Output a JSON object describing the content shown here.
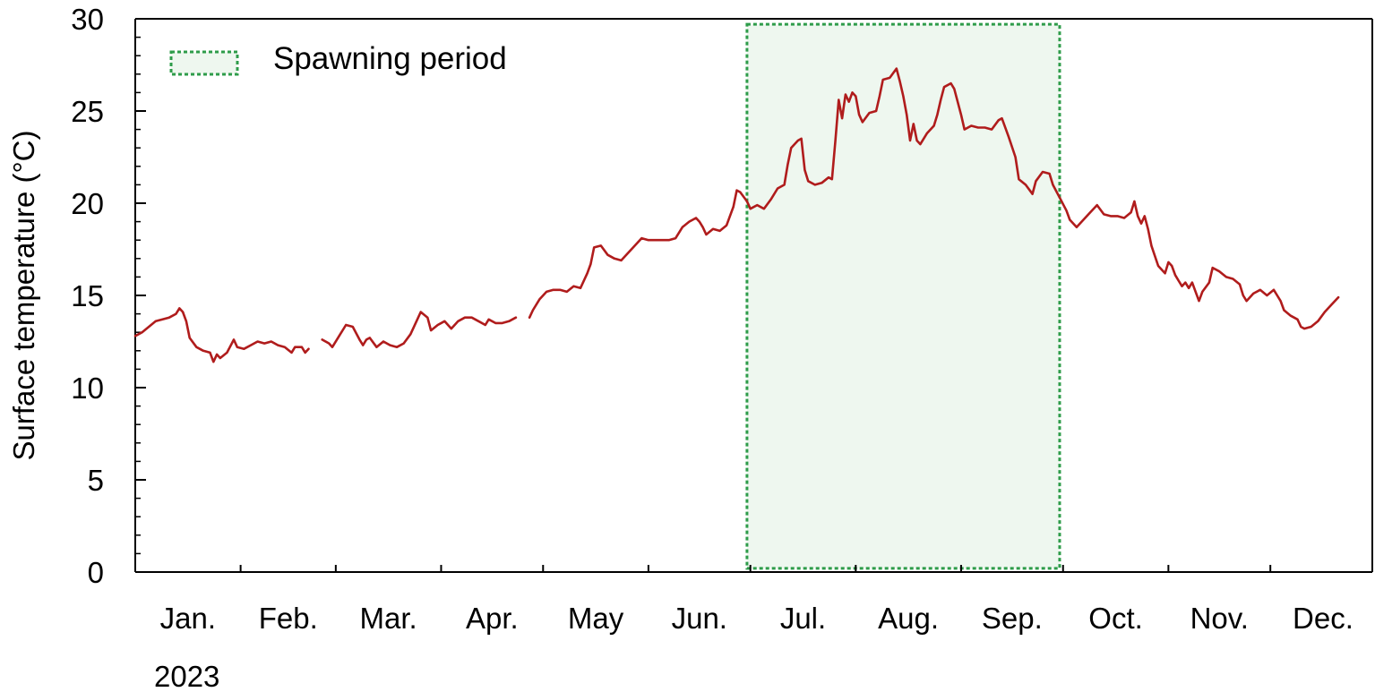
{
  "chart_data": {
    "type": "line",
    "title": "",
    "xlabel": "2023",
    "ylabel": "Surface temperature (°C)",
    "ylim": [
      0,
      30
    ],
    "yticks": [
      0,
      5,
      10,
      15,
      20,
      25,
      30
    ],
    "ytick_labels": [
      "0",
      "5",
      "10",
      "15",
      "20",
      "25",
      "30"
    ],
    "year_label": "2023",
    "x_domain_days": [
      1,
      365
    ],
    "months": [
      "Jan.",
      "Feb.",
      "Mar.",
      "Apr.",
      "May",
      "Jun.",
      "Jul.",
      "Aug.",
      "Sep.",
      "Oct.",
      "Nov.",
      "Dec."
    ],
    "legend": {
      "label": "Spawning period",
      "position": "top-left"
    },
    "spawning_period": {
      "start": "Jul. 1",
      "end": "Sep. 30",
      "start_day": 181,
      "end_day": 273
    },
    "line_color": "#b01c1c",
    "band_color": "#2e9c4a",
    "grid": false,
    "series": [
      {
        "segments": [
          [
            [
              1,
              12.8
            ],
            [
              3,
              13.0
            ],
            [
              5,
              13.3
            ],
            [
              7,
              13.6
            ],
            [
              9,
              13.7
            ],
            [
              11,
              13.8
            ],
            [
              13,
              14.0
            ],
            [
              14,
              14.3
            ],
            [
              15,
              14.1
            ],
            [
              16,
              13.6
            ],
            [
              17,
              12.7
            ],
            [
              19,
              12.2
            ],
            [
              21,
              12.0
            ],
            [
              23,
              11.9
            ],
            [
              24,
              11.4
            ],
            [
              25,
              11.8
            ],
            [
              26,
              11.6
            ],
            [
              28,
              11.9
            ],
            [
              30,
              12.6
            ],
            [
              31,
              12.2
            ],
            [
              33,
              12.1
            ],
            [
              35,
              12.3
            ],
            [
              37,
              12.5
            ],
            [
              39,
              12.4
            ],
            [
              41,
              12.5
            ],
            [
              43,
              12.3
            ],
            [
              45,
              12.2
            ],
            [
              47,
              11.9
            ],
            [
              48,
              12.2
            ],
            [
              50,
              12.2
            ],
            [
              51,
              11.9
            ],
            [
              52,
              12.1
            ]
          ],
          [
            [
              56,
              12.6
            ],
            [
              58,
              12.4
            ],
            [
              59,
              12.2
            ],
            [
              61,
              12.8
            ],
            [
              63,
              13.4
            ],
            [
              65,
              13.3
            ],
            [
              67,
              12.6
            ],
            [
              68,
              12.3
            ],
            [
              69,
              12.6
            ],
            [
              70,
              12.7
            ],
            [
              72,
              12.2
            ],
            [
              74,
              12.5
            ],
            [
              76,
              12.3
            ],
            [
              78,
              12.2
            ],
            [
              80,
              12.4
            ],
            [
              82,
              12.9
            ],
            [
              84,
              13.7
            ],
            [
              85,
              14.1
            ],
            [
              87,
              13.8
            ],
            [
              88,
              13.1
            ],
            [
              90,
              13.4
            ],
            [
              92,
              13.6
            ],
            [
              94,
              13.2
            ],
            [
              96,
              13.6
            ],
            [
              98,
              13.8
            ],
            [
              100,
              13.8
            ],
            [
              102,
              13.6
            ],
            [
              104,
              13.4
            ],
            [
              105,
              13.7
            ],
            [
              107,
              13.5
            ],
            [
              109,
              13.5
            ],
            [
              111,
              13.6
            ],
            [
              113,
              13.8
            ]
          ],
          [
            [
              117,
              13.8
            ],
            [
              118,
              14.2
            ],
            [
              120,
              14.8
            ],
            [
              122,
              15.2
            ],
            [
              124,
              15.3
            ],
            [
              126,
              15.3
            ],
            [
              128,
              15.2
            ],
            [
              130,
              15.5
            ],
            [
              132,
              15.4
            ],
            [
              134,
              16.2
            ],
            [
              135,
              16.7
            ],
            [
              136,
              17.6
            ],
            [
              138,
              17.7
            ],
            [
              140,
              17.2
            ],
            [
              142,
              17.0
            ],
            [
              144,
              16.9
            ],
            [
              146,
              17.3
            ],
            [
              148,
              17.7
            ],
            [
              150,
              18.1
            ],
            [
              152,
              18.0
            ],
            [
              155,
              18.0
            ],
            [
              158,
              18.0
            ],
            [
              160,
              18.1
            ],
            [
              162,
              18.7
            ],
            [
              164,
              19.0
            ],
            [
              166,
              19.2
            ],
            [
              167,
              19.0
            ],
            [
              168,
              18.7
            ],
            [
              169,
              18.3
            ],
            [
              171,
              18.6
            ],
            [
              173,
              18.5
            ],
            [
              175,
              18.8
            ],
            [
              177,
              19.8
            ],
            [
              178,
              20.7
            ],
            [
              179,
              20.6
            ],
            [
              181,
              20.1
            ],
            [
              182,
              19.7
            ],
            [
              184,
              19.9
            ],
            [
              186,
              19.7
            ],
            [
              188,
              20.2
            ],
            [
              190,
              20.8
            ],
            [
              192,
              21.0
            ],
            [
              193,
              22.1
            ],
            [
              194,
              23.0
            ],
            [
              196,
              23.4
            ],
            [
              197,
              23.5
            ],
            [
              198,
              21.8
            ],
            [
              199,
              21.2
            ],
            [
              201,
              21.0
            ],
            [
              203,
              21.1
            ],
            [
              205,
              21.4
            ],
            [
              206,
              21.3
            ],
            [
              207,
              23.4
            ],
            [
              208,
              25.6
            ],
            [
              209,
              24.6
            ],
            [
              210,
              25.9
            ],
            [
              211,
              25.5
            ],
            [
              212,
              26.0
            ],
            [
              213,
              25.8
            ],
            [
              214,
              24.8
            ],
            [
              215,
              24.4
            ],
            [
              217,
              24.9
            ],
            [
              219,
              25.0
            ],
            [
              220,
              25.8
            ],
            [
              221,
              26.7
            ],
            [
              223,
              26.8
            ],
            [
              225,
              27.3
            ],
            [
              226,
              26.6
            ],
            [
              227,
              25.8
            ],
            [
              228,
              24.8
            ],
            [
              229,
              23.4
            ],
            [
              230,
              24.3
            ],
            [
              231,
              23.4
            ],
            [
              232,
              23.2
            ],
            [
              234,
              23.8
            ],
            [
              236,
              24.2
            ],
            [
              237,
              24.8
            ],
            [
              238,
              25.6
            ],
            [
              239,
              26.3
            ],
            [
              241,
              26.5
            ],
            [
              242,
              26.2
            ],
            [
              243,
              25.5
            ],
            [
              244,
              24.8
            ],
            [
              245,
              24.0
            ],
            [
              247,
              24.2
            ],
            [
              249,
              24.1
            ],
            [
              251,
              24.1
            ],
            [
              253,
              24.0
            ],
            [
              255,
              24.5
            ],
            [
              256,
              24.6
            ],
            [
              258,
              23.6
            ],
            [
              260,
              22.5
            ],
            [
              261,
              21.3
            ],
            [
              263,
              21.0
            ],
            [
              265,
              20.5
            ],
            [
              266,
              21.2
            ],
            [
              268,
              21.7
            ],
            [
              270,
              21.6
            ],
            [
              271,
              21.0
            ],
            [
              273,
              20.3
            ],
            [
              275,
              19.6
            ],
            [
              276,
              19.1
            ],
            [
              278,
              18.7
            ],
            [
              280,
              19.1
            ],
            [
              282,
              19.5
            ],
            [
              284,
              19.9
            ],
            [
              286,
              19.4
            ],
            [
              288,
              19.3
            ],
            [
              290,
              19.3
            ],
            [
              292,
              19.2
            ],
            [
              294,
              19.5
            ],
            [
              295,
              20.1
            ],
            [
              296,
              19.3
            ],
            [
              297,
              18.9
            ],
            [
              298,
              19.3
            ],
            [
              299,
              18.6
            ],
            [
              300,
              17.7
            ],
            [
              302,
              16.6
            ],
            [
              304,
              16.2
            ],
            [
              305,
              16.8
            ],
            [
              306,
              16.6
            ],
            [
              307,
              16.1
            ],
            [
              308,
              15.8
            ],
            [
              309,
              15.5
            ],
            [
              310,
              15.7
            ],
            [
              311,
              15.4
            ],
            [
              312,
              15.7
            ],
            [
              313,
              15.2
            ],
            [
              314,
              14.7
            ],
            [
              315,
              15.2
            ],
            [
              317,
              15.7
            ],
            [
              318,
              16.5
            ],
            [
              320,
              16.3
            ],
            [
              322,
              16.0
            ],
            [
              324,
              15.9
            ],
            [
              326,
              15.6
            ],
            [
              327,
              15.0
            ],
            [
              328,
              14.7
            ],
            [
              330,
              15.1
            ],
            [
              332,
              15.3
            ],
            [
              334,
              15.0
            ],
            [
              336,
              15.3
            ],
            [
              337,
              15.0
            ],
            [
              338,
              14.7
            ],
            [
              339,
              14.2
            ],
            [
              341,
              13.9
            ],
            [
              343,
              13.7
            ],
            [
              344,
              13.3
            ],
            [
              345,
              13.2
            ],
            [
              347,
              13.3
            ],
            [
              349,
              13.6
            ],
            [
              351,
              14.1
            ],
            [
              353,
              14.5
            ],
            [
              355,
              14.9
            ]
          ]
        ]
      }
    ]
  }
}
